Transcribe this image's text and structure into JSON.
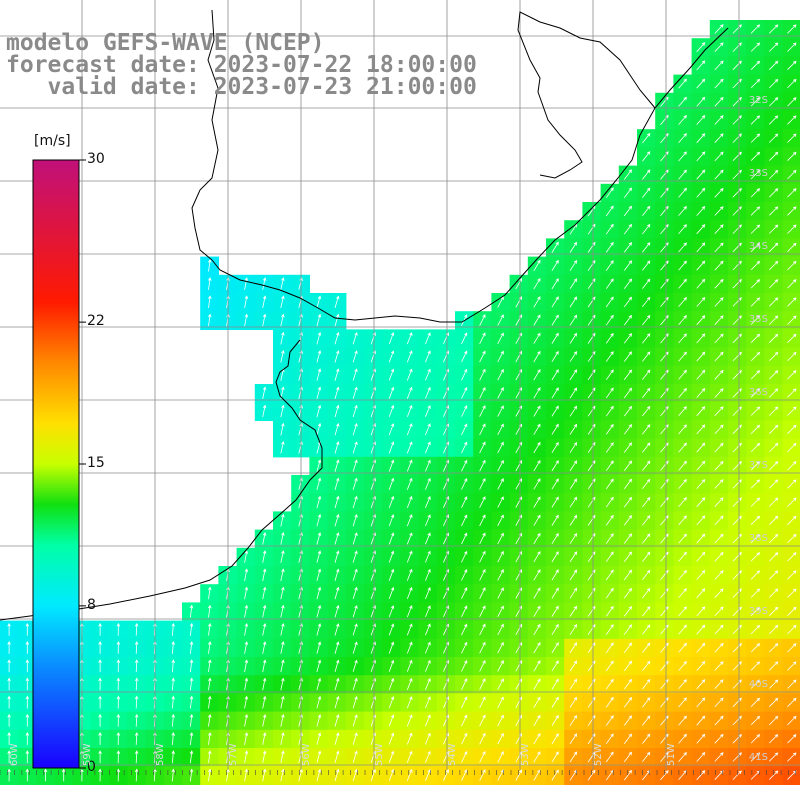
{
  "title": {
    "line1": "modelo GEFS-WAVE (NCEP)",
    "line2": "forecast date: 2023-07-22 18:00:00",
    "line3": "   valid date: 2023-07-23 21:00:00"
  },
  "colorbar": {
    "units": "[m/s]",
    "ticks": [
      {
        "label": "30",
        "value": 30
      },
      {
        "label": "22",
        "value": 22
      },
      {
        "label": "15",
        "value": 15
      },
      {
        "label": "8",
        "value": 8
      },
      {
        "label": "0",
        "value": 0
      }
    ],
    "gradient_stops": [
      {
        "value": 0,
        "color": "#1a00ff"
      },
      {
        "value": 5,
        "color": "#0a8cff"
      },
      {
        "value": 8,
        "color": "#00eaff"
      },
      {
        "value": 11,
        "color": "#00ffa6"
      },
      {
        "value": 13,
        "color": "#10e010"
      },
      {
        "value": 15,
        "color": "#c8ff00"
      },
      {
        "value": 17,
        "color": "#ffe000"
      },
      {
        "value": 20,
        "color": "#ff8800"
      },
      {
        "value": 23,
        "color": "#ff1a00"
      },
      {
        "value": 30,
        "color": "#c0107a"
      }
    ]
  },
  "lat_labels": [
    "32S",
    "33S",
    "34S",
    "35S",
    "36S",
    "37S",
    "38S",
    "39S",
    "40S",
    "41S"
  ],
  "lon_labels": [
    "60W",
    "59W",
    "58W",
    "57W",
    "56W",
    "55W",
    "54W",
    "53W",
    "52W",
    "51W"
  ],
  "colors": {
    "grid": "#8c8c8c",
    "coast": "#000000",
    "land": "#ffffff",
    "arrows": "#ffffff"
  }
}
